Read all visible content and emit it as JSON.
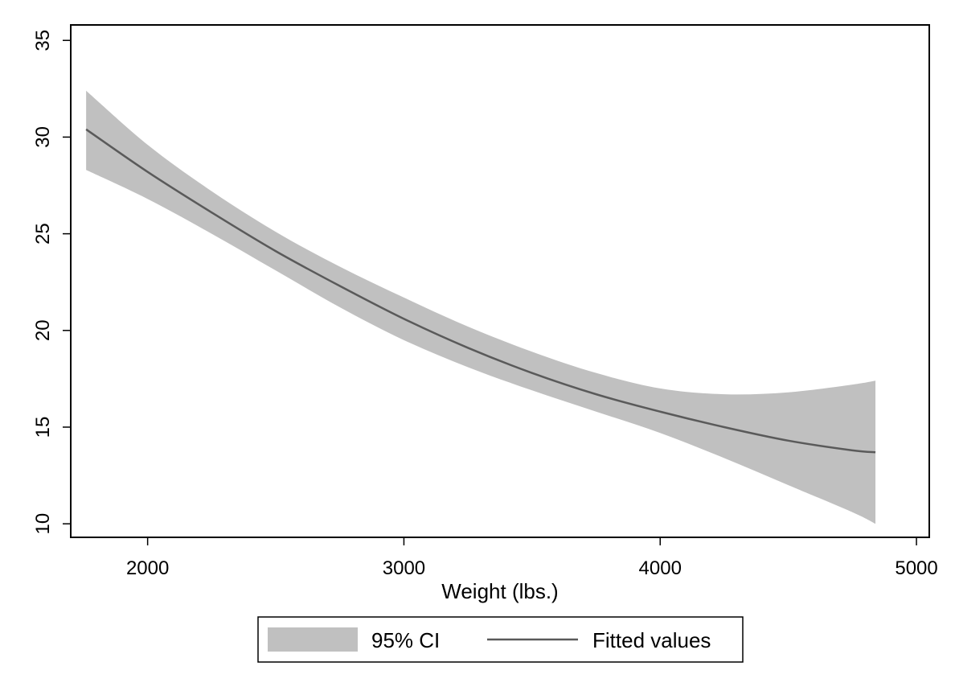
{
  "chart_data": {
    "type": "area",
    "title": "",
    "xlabel": "Weight (lbs.)",
    "ylabel": "",
    "xlim": [
      1700,
      5050
    ],
    "ylim": [
      9.3,
      35.8
    ],
    "x_ticks": [
      2000,
      3000,
      4000,
      5000
    ],
    "y_ticks": [
      10,
      15,
      20,
      25,
      30,
      35
    ],
    "grid": false,
    "legend_position": "bottom",
    "colors": {
      "band": "#c0c0c0",
      "line": "#5a5a5a",
      "frame": "#000000"
    },
    "series": [
      {
        "name": "95% CI",
        "type": "band",
        "x": [
          1760,
          2000,
          2250,
          2500,
          2750,
          3000,
          3250,
          3500,
          3750,
          4000,
          4250,
          4500,
          4750,
          4840
        ],
        "lower": [
          28.3,
          26.8,
          25.0,
          23.1,
          21.2,
          19.5,
          18.1,
          16.9,
          15.8,
          14.7,
          13.4,
          12.0,
          10.6,
          10.0
        ],
        "upper": [
          32.4,
          29.6,
          27.2,
          25.1,
          23.3,
          21.7,
          20.2,
          18.9,
          17.8,
          17.0,
          16.7,
          16.8,
          17.2,
          17.4
        ]
      },
      {
        "name": "Fitted values",
        "type": "line",
        "x": [
          1760,
          2000,
          2250,
          2500,
          2750,
          3000,
          3250,
          3500,
          3750,
          4000,
          4250,
          4500,
          4750,
          4840
        ],
        "y": [
          30.4,
          28.2,
          26.1,
          24.1,
          22.3,
          20.6,
          19.1,
          17.8,
          16.7,
          15.8,
          15.0,
          14.3,
          13.8,
          13.7
        ]
      }
    ]
  }
}
